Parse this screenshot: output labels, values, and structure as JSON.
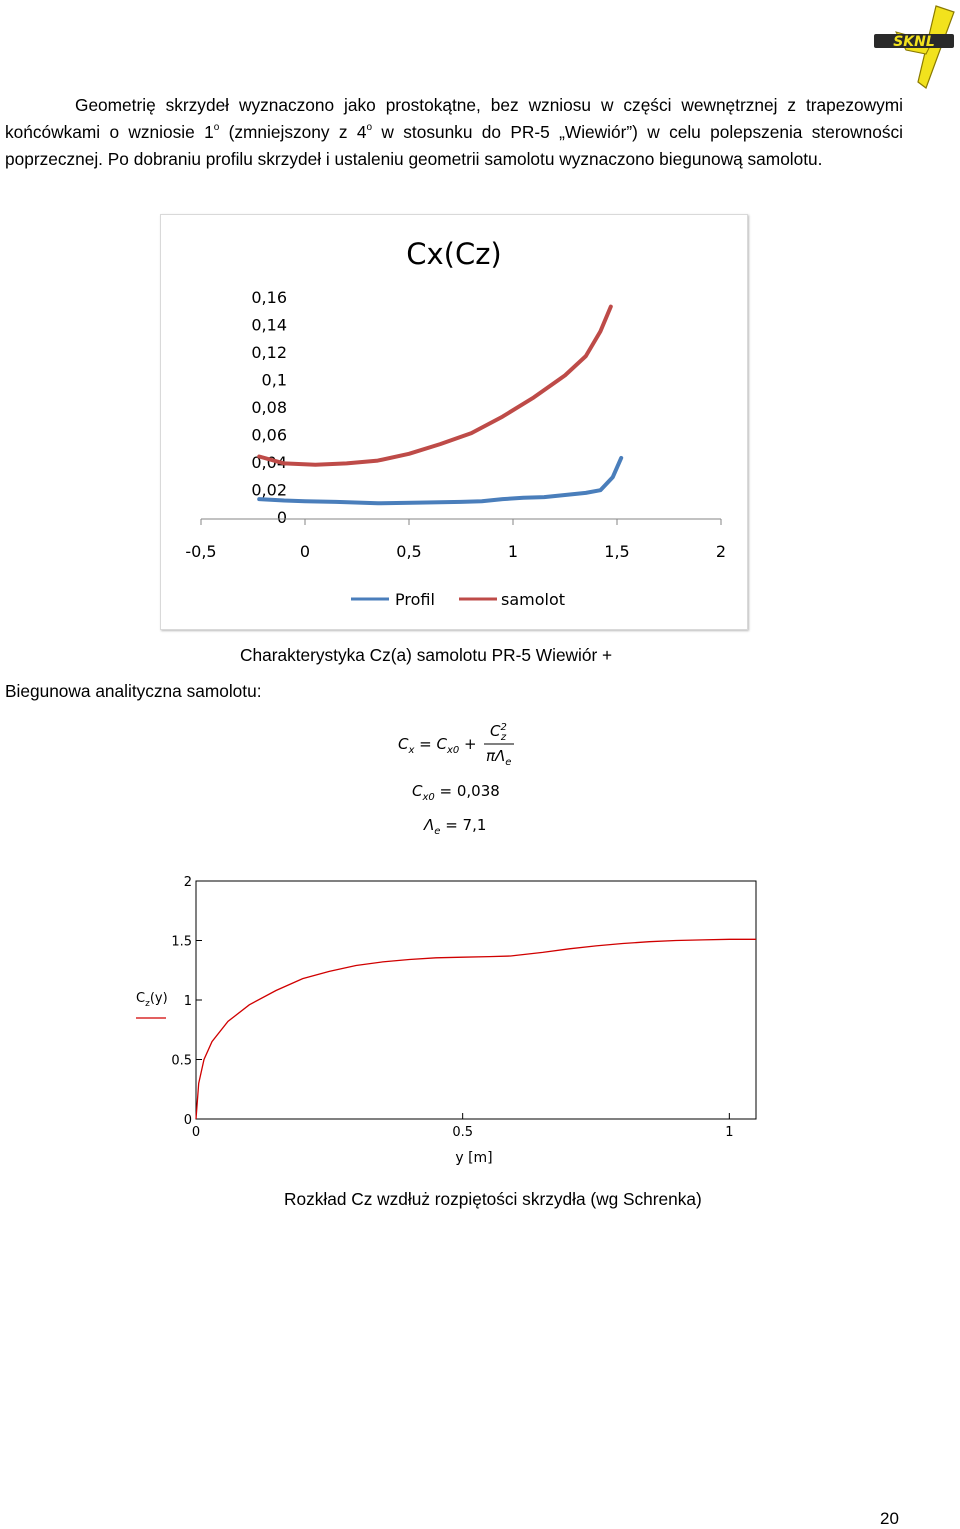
{
  "paragraph": {
    "part1": "Geometrię skrzydeł wyznaczono jako prostokątne, bez wzniosu w części wewnętrznej z trapezowymi końcówkami o wzniosie 1",
    "sup1": "o",
    "part2": " (zmniejszony z 4",
    "sup2": "o",
    "part3": " w stosunku do PR-5 „Wiewiór”) w celu polepszenia sterowności poprzecznej. Po dobraniu profilu skrzydeł i ustaleniu geometrii samolotu wyznaczono biegunową samolotu."
  },
  "logo": {
    "text": "SKNL",
    "name": "sknl-logo"
  },
  "chart1": {
    "title": "Cx(Cz)",
    "y_ticks": [
      "0,16",
      "0,14",
      "0,12",
      "0,1",
      "0,08",
      "0,06",
      "0,04",
      "0,02",
      "0"
    ],
    "x_ticks": [
      "-0,5",
      "0",
      "0,5",
      "1",
      "1,5",
      "2"
    ],
    "legend": [
      "Profil",
      "samolot"
    ],
    "colors": {
      "profil": "#4a7ebb",
      "samolot": "#be4b48"
    }
  },
  "caption1": "Charakterystyka Cz(a) samolotu PR-5 Wiewiór +",
  "section_label": "Biegunowa analityczna samolotu:",
  "formula": {
    "line1_left": "C",
    "line1_left_sub": "x",
    "line1_eq": " = C",
    "line1_sub2": "x0",
    "line1_plus": " +",
    "num": "C",
    "num_sup": "2",
    "num_sub": "z",
    "den": "πΛ",
    "den_sub": "e",
    "line2": "C",
    "line2_sub": "x0",
    "line2_val": " = 0,038",
    "line3": "Λ",
    "line3_sub": "e",
    "line3_val": " = 7,1"
  },
  "chart2": {
    "y_ticks": [
      "2",
      "1.5",
      "1",
      "0.5",
      "0"
    ],
    "x_ticks": [
      "0",
      "0.5",
      "1"
    ],
    "ylabel": "C",
    "ylabel_sub": "z",
    "ylabel_arg": "(y)",
    "xlabel": "y [m]",
    "color": "#d00000"
  },
  "caption2": "Rozkład Cz wzdłuż rozpiętości skrzydła (wg Schrenka)",
  "page_number": "20",
  "chart_data": [
    {
      "type": "line",
      "title": "Cx(Cz)",
      "xlim": [
        -0.5,
        2
      ],
      "ylim": [
        0,
        0.16
      ],
      "legend_position": "bottom",
      "series": [
        {
          "name": "Profil",
          "points": [
            [
              -0.22,
              0.013
            ],
            [
              -0.1,
              0.012
            ],
            [
              0.0,
              0.0115
            ],
            [
              0.15,
              0.011
            ],
            [
              0.35,
              0.01
            ],
            [
              0.55,
              0.0105
            ],
            [
              0.75,
              0.011
            ],
            [
              0.85,
              0.0115
            ],
            [
              0.95,
              0.013
            ],
            [
              1.05,
              0.014
            ],
            [
              1.15,
              0.0145
            ],
            [
              1.25,
              0.016
            ],
            [
              1.35,
              0.0175
            ],
            [
              1.42,
              0.0195
            ],
            [
              1.48,
              0.029
            ],
            [
              1.52,
              0.043
            ]
          ]
        },
        {
          "name": "samolot",
          "points": [
            [
              -0.22,
              0.044
            ],
            [
              -0.1,
              0.039
            ],
            [
              0.05,
              0.038
            ],
            [
              0.2,
              0.039
            ],
            [
              0.35,
              0.041
            ],
            [
              0.5,
              0.046
            ],
            [
              0.65,
              0.053
            ],
            [
              0.8,
              0.061
            ],
            [
              0.95,
              0.073
            ],
            [
              1.1,
              0.087
            ],
            [
              1.25,
              0.103
            ],
            [
              1.35,
              0.117
            ],
            [
              1.42,
              0.135
            ],
            [
              1.47,
              0.153
            ]
          ]
        }
      ]
    },
    {
      "type": "line",
      "xlim": [
        0,
        1.05
      ],
      "ylim": [
        0,
        2
      ],
      "xlabel": "y [m]",
      "ylabel": "Cz(y)",
      "series": [
        {
          "points": [
            [
              0,
              0
            ],
            [
              0.005,
              0.3
            ],
            [
              0.015,
              0.5
            ],
            [
              0.03,
              0.65
            ],
            [
              0.06,
              0.82
            ],
            [
              0.1,
              0.96
            ],
            [
              0.15,
              1.08
            ],
            [
              0.2,
              1.18
            ],
            [
              0.25,
              1.24
            ],
            [
              0.3,
              1.29
            ],
            [
              0.35,
              1.32
            ],
            [
              0.4,
              1.34
            ],
            [
              0.45,
              1.355
            ],
            [
              0.5,
              1.36
            ],
            [
              0.55,
              1.365
            ],
            [
              0.59,
              1.37
            ],
            [
              0.6,
              1.375
            ],
            [
              0.65,
              1.4
            ],
            [
              0.7,
              1.43
            ],
            [
              0.75,
              1.455
            ],
            [
              0.8,
              1.475
            ],
            [
              0.85,
              1.49
            ],
            [
              0.9,
              1.5
            ],
            [
              0.95,
              1.505
            ],
            [
              1.0,
              1.51
            ],
            [
              1.05,
              1.51
            ]
          ]
        }
      ]
    }
  ]
}
